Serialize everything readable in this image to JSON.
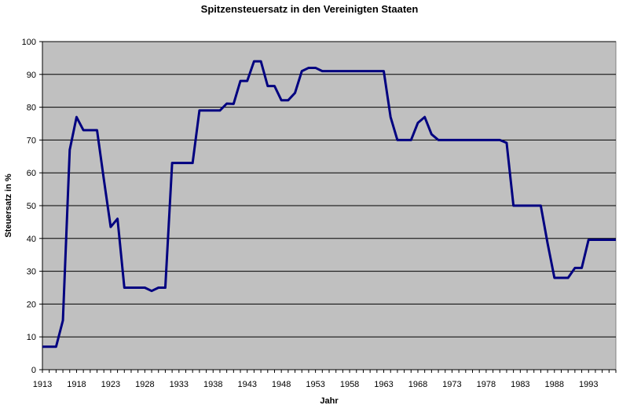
{
  "chart_data": {
    "type": "line",
    "title": "Spitzensteuersatz in den Vereinigten Staaten",
    "xlabel": "Jahr",
    "ylabel": "Steuersatz in %",
    "xlim": [
      1913,
      1997
    ],
    "ylim": [
      0,
      100
    ],
    "y_ticks": [
      0,
      10,
      20,
      30,
      40,
      50,
      60,
      70,
      80,
      90,
      100
    ],
    "x_tick_labels": [
      "1913",
      "1918",
      "1923",
      "1928",
      "1933",
      "1938",
      "1943",
      "1948",
      "1953",
      "1958",
      "1963",
      "1968",
      "1973",
      "1978",
      "1983",
      "1988",
      "1993"
    ],
    "grid": true,
    "legend": "none",
    "colors": {
      "line": "#000080",
      "plot_background": "#c0c0c0",
      "grid": "#000000"
    },
    "series": [
      {
        "x": [
          1913,
          1914,
          1915,
          1916,
          1917,
          1918,
          1919,
          1920,
          1921,
          1922,
          1923,
          1924,
          1925,
          1926,
          1927,
          1928,
          1929,
          1930,
          1931,
          1932,
          1933,
          1934,
          1935,
          1936,
          1937,
          1938,
          1939,
          1940,
          1941,
          1942,
          1943,
          1944,
          1945,
          1946,
          1947,
          1948,
          1949,
          1950,
          1951,
          1952,
          1953,
          1954,
          1955,
          1956,
          1957,
          1958,
          1959,
          1960,
          1961,
          1962,
          1963,
          1964,
          1965,
          1966,
          1967,
          1968,
          1969,
          1970,
          1971,
          1972,
          1973,
          1974,
          1975,
          1976,
          1977,
          1978,
          1979,
          1980,
          1981,
          1982,
          1983,
          1984,
          1985,
          1986,
          1987,
          1988,
          1989,
          1990,
          1991,
          1992,
          1993,
          1994,
          1995,
          1996,
          1997
        ],
        "values": [
          7,
          7,
          7,
          15,
          67,
          77,
          73,
          73,
          73,
          58,
          43.5,
          46,
          25,
          25,
          25,
          25,
          24,
          25,
          25,
          63,
          63,
          63,
          63,
          79,
          79,
          79,
          79,
          81.1,
          81,
          88,
          88,
          94,
          94,
          86.45,
          86.45,
          82.13,
          82.13,
          84.36,
          91,
          92,
          92,
          91,
          91,
          91,
          91,
          91,
          91,
          91,
          91,
          91,
          91,
          77,
          70,
          70,
          70,
          75.25,
          77,
          71.75,
          70,
          70,
          70,
          70,
          70,
          70,
          70,
          70,
          70,
          70,
          69.13,
          50,
          50,
          50,
          50,
          50,
          38.5,
          28,
          28,
          28,
          31,
          31,
          39.6,
          39.6,
          39.6,
          39.6,
          39.6
        ]
      }
    ]
  }
}
